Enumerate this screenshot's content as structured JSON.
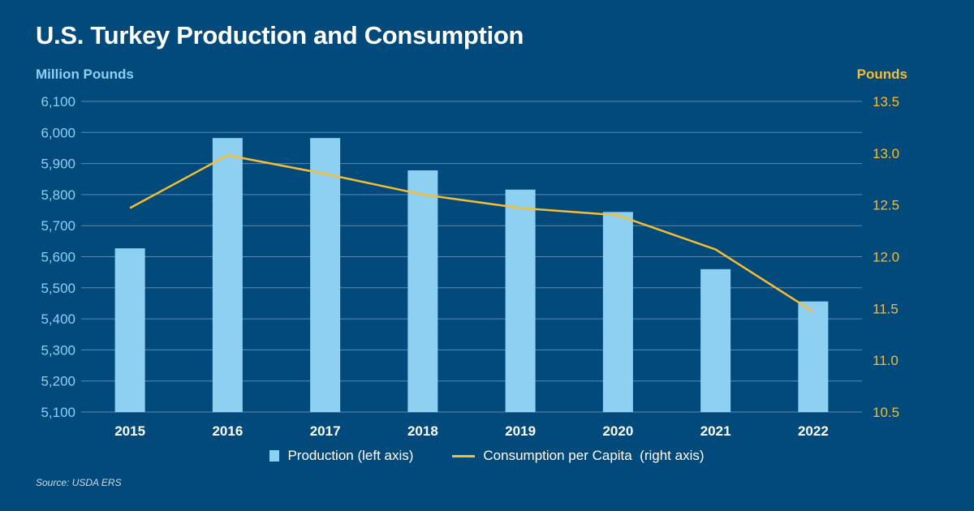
{
  "chart_data": {
    "title": "U.S. Turkey Production and Consumption",
    "type": "bar",
    "categories": [
      "2015",
      "2016",
      "2017",
      "2018",
      "2019",
      "2020",
      "2021",
      "2022"
    ],
    "series": [
      {
        "name": "Production (left axis)",
        "type": "bar",
        "axis": "left",
        "color": "#8ed0f2",
        "values": [
          5627,
          5982,
          5982,
          5878,
          5816,
          5744,
          5560,
          5456
        ]
      },
      {
        "name": "Consumption per Capita  (right axis)",
        "type": "line",
        "axis": "right",
        "color": "#f5bd33",
        "values": [
          12.47,
          12.98,
          12.8,
          12.6,
          12.47,
          12.4,
          12.07,
          11.47
        ]
      }
    ],
    "ylabel_left": "Million Pounds",
    "ylabel_right": "Pounds",
    "ylim_left": [
      5100,
      6100
    ],
    "ylim_right": [
      10.5,
      13.5
    ],
    "yticks_left": [
      "6,100",
      "6,000",
      "5,900",
      "5,800",
      "5,700",
      "5,600",
      "5,500",
      "5,400",
      "5,300",
      "5,200",
      "5,100"
    ],
    "yticks_right": [
      "13.5",
      "13.0",
      "12.5",
      "12.0",
      "11.5",
      "11.0",
      "10.5"
    ],
    "grid": true,
    "legend_position": "bottom"
  },
  "source": "Source: USDA ERS",
  "colors": {
    "background": "#024a7b",
    "grid": "#5d89ac"
  }
}
